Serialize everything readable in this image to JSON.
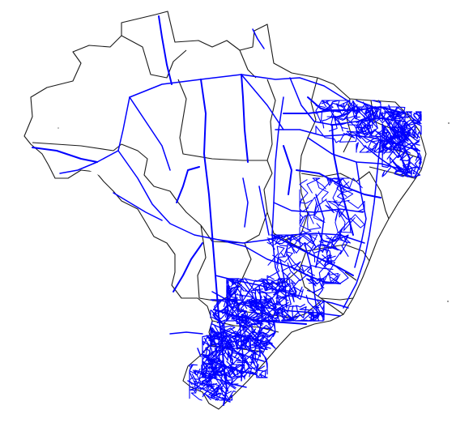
{
  "map": {
    "region": "Brazil",
    "background_color": "#ffffff",
    "border_color": "#1a1a1a",
    "route_color": "#0000ff",
    "has_title": false,
    "has_legend": false,
    "has_labels": false
  }
}
